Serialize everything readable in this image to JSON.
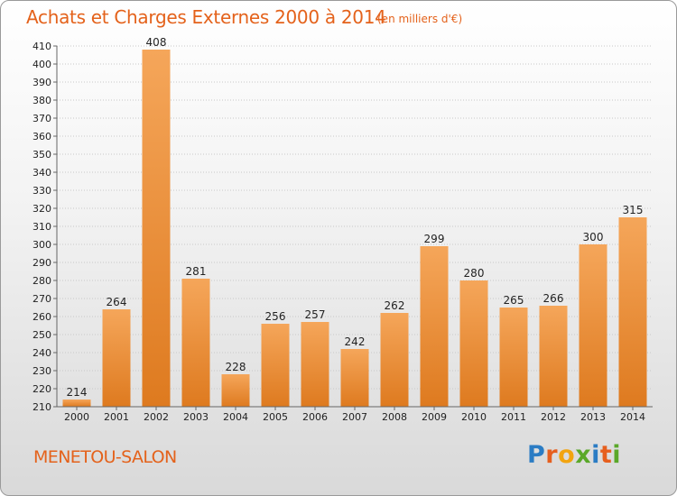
{
  "title": "Achats et Charges Externes 2000 à 2014",
  "subtitle": "(en milliers d'€)",
  "town": "MENETOU-SALON",
  "logo": {
    "p": "P",
    "r": "r",
    "o": "o",
    "x": "x",
    "i1": "i",
    "t": "t",
    "i2": "i"
  },
  "colors": {
    "bar_top": "#f5a65a",
    "bar_bottom": "#de7a1f",
    "title": "#e4621b"
  },
  "chart_data": {
    "type": "bar",
    "title": "Achats et Charges Externes 2000 à 2014",
    "subtitle": "(en milliers d'€)",
    "xlabel": "",
    "ylabel": "",
    "categories": [
      "2000",
      "2001",
      "2002",
      "2003",
      "2004",
      "2005",
      "2006",
      "2007",
      "2008",
      "2009",
      "2010",
      "2011",
      "2012",
      "2013",
      "2014"
    ],
    "values": [
      214,
      264,
      408,
      281,
      228,
      256,
      257,
      242,
      262,
      299,
      280,
      265,
      266,
      300,
      315
    ],
    "ylim": [
      210,
      410
    ],
    "yticks": [
      210,
      220,
      230,
      240,
      250,
      260,
      270,
      280,
      290,
      300,
      310,
      320,
      330,
      340,
      350,
      360,
      370,
      380,
      390,
      400,
      410
    ],
    "grid": true,
    "legend": "none"
  }
}
